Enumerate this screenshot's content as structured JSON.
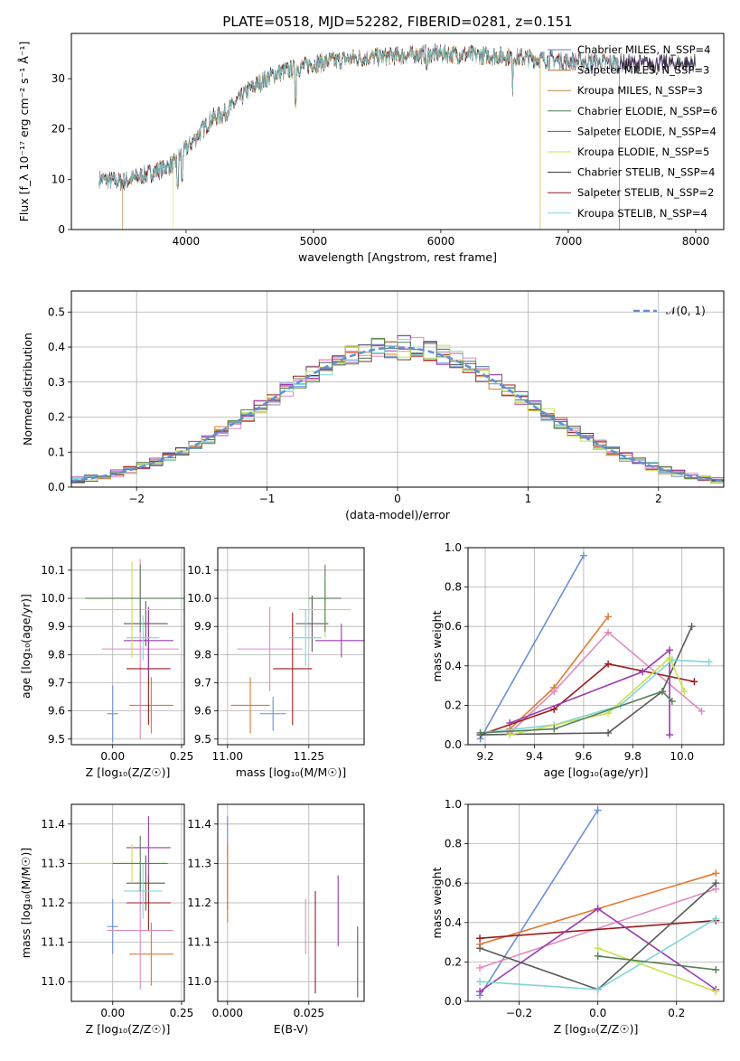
{
  "figure": {
    "title": "PLATE=0518, MJD=52282, FIBERID=0281, z=0.151"
  },
  "colors": {
    "series": [
      "#5f7fbf",
      "#c96d2e",
      "#b08a3a",
      "#4a7f4a",
      "#8a3aa8",
      "#d8d84a",
      "#2a2a2a",
      "#9b1c1c",
      "#7fd6d6"
    ],
    "fit": [
      "#6b8fd6",
      "#e07a2e",
      "#e08ac0",
      "#9b1c1c",
      "#9b3ab0",
      "#5a5a5a",
      "#7fd6d6",
      "#c8e050",
      "#5a7f5a"
    ]
  },
  "chart_data": [
    {
      "id": "spectrum",
      "type": "line",
      "xlabel": "wavelength [Angstrom, rest frame]",
      "ylabel": "Flux [f_λ 10⁻¹⁷ erg cm⁻² s⁻¹ Å⁻¹]",
      "xlim": [
        3100,
        8220
      ],
      "ylim": [
        0,
        39
      ],
      "xticks": [
        4000,
        5000,
        6000,
        7000,
        8000
      ],
      "yticks": [
        0,
        10,
        20,
        30
      ],
      "legend_position": "top-right",
      "continuum": {
        "x": [
          3320,
          3500,
          3700,
          3800,
          3900,
          4000,
          4100,
          4200,
          4300,
          4500,
          4700,
          5000,
          5300,
          5600,
          6000,
          6500,
          7000,
          7500,
          8000
        ],
        "y": [
          10,
          9.5,
          11,
          12,
          13,
          16,
          19,
          22,
          23,
          28,
          31,
          33,
          34,
          34.5,
          35,
          34.5,
          33.5,
          33,
          33
        ]
      },
      "series": [
        {
          "name": "Chabrier MILES, N_SSP=4"
        },
        {
          "name": "Salpeter MILES, N_SSP=3"
        },
        {
          "name": "Kroupa MILES, N_SSP=3"
        },
        {
          "name": "Chabrier ELODIE, N_SSP=6"
        },
        {
          "name": "Salpeter ELODIE, N_SSP=4"
        },
        {
          "name": "Kroupa ELODIE, N_SSP=5"
        },
        {
          "name": "Chabrier STELIB, N_SSP=4"
        },
        {
          "name": "Salpeter STELIB, N_SSP=2"
        },
        {
          "name": "Kroupa STELIB, N_SSP=4"
        }
      ]
    },
    {
      "id": "residual",
      "type": "line",
      "xlabel": "(data-model)/error",
      "ylabel": "Normed distribution",
      "xlim": [
        -2.5,
        2.5
      ],
      "ylim": [
        0,
        0.56
      ],
      "xticks": [
        -2,
        -1,
        0,
        1,
        2
      ],
      "xticklabels": [
        "−2",
        "−1",
        "0",
        "1",
        "2"
      ],
      "yticks": [
        0.0,
        0.1,
        0.2,
        0.3,
        0.4,
        0.5
      ],
      "yticklabels": [
        "0.0",
        "0.1",
        "0.2",
        "0.3",
        "0.4",
        "0.5"
      ],
      "legend": "𝒩(0, 1)",
      "legend_position": "top-right"
    },
    {
      "id": "z-age",
      "type": "scatter",
      "xlabel": "Z [log₁₀(Z/Z☉)]",
      "ylabel": "age  [log₁₀(age/yr)]",
      "xlim": [
        -0.15,
        0.26
      ],
      "ylim": [
        9.48,
        10.18
      ],
      "xticks": [
        0.0,
        0.25
      ],
      "xticklabels": [
        "0.00",
        "0.25"
      ],
      "yticks": [
        9.5,
        9.6,
        9.7,
        9.8,
        9.9,
        10.0,
        10.1
      ],
      "yticklabels": [
        "9.5",
        "9.6",
        "9.7",
        "9.8",
        "9.9",
        "10.0",
        "10.1"
      ],
      "points": [
        {
          "x": 0.0,
          "y": 9.59,
          "xerr": 0.02,
          "yerr": 0.1
        },
        {
          "x": 0.14,
          "y": 9.62,
          "xerr": 0.08,
          "yerr": 0.1
        },
        {
          "x": 0.1,
          "y": 9.82,
          "xerr": 0.14,
          "yerr": 0.32
        },
        {
          "x": 0.13,
          "y": 9.75,
          "xerr": 0.08,
          "yerr": 0.2
        },
        {
          "x": 0.13,
          "y": 9.85,
          "xerr": 0.09,
          "yerr": 0.12
        },
        {
          "x": 0.12,
          "y": 9.91,
          "xerr": 0.08,
          "yerr": 0.08
        },
        {
          "x": 0.11,
          "y": 9.86,
          "xerr": 0.06,
          "yerr": 0.08
        },
        {
          "x": 0.07,
          "y": 9.96,
          "xerr": 0.19,
          "yerr": 0.17
        },
        {
          "x": 0.1,
          "y": 10.0,
          "xerr": 0.2,
          "yerr": 0.12
        }
      ]
    },
    {
      "id": "mass-age",
      "type": "scatter",
      "xlabel": "mass [log₁₀(M/M☉)]",
      "ylabel": "",
      "xlim": [
        10.97,
        11.42
      ],
      "ylim": [
        9.48,
        10.18
      ],
      "xticks": [
        11.0,
        11.25
      ],
      "xticklabels": [
        "11.00",
        "11.25"
      ],
      "yticks": [
        9.5,
        9.6,
        9.7,
        9.8,
        9.9,
        10.0,
        10.1
      ],
      "yticklabels": [
        "9.5",
        "9.6",
        "9.7",
        "9.8",
        "9.9",
        "10.0",
        "10.1"
      ],
      "points": [
        {
          "x": 11.14,
          "y": 9.59,
          "xerr": 0.04,
          "yerr": 0.06
        },
        {
          "x": 11.07,
          "y": 9.62,
          "xerr": 0.06,
          "yerr": 0.1
        },
        {
          "x": 11.13,
          "y": 9.82,
          "xerr": 0.1,
          "yerr": 0.15
        },
        {
          "x": 11.2,
          "y": 9.75,
          "xerr": 0.06,
          "yerr": 0.2
        },
        {
          "x": 11.35,
          "y": 9.85,
          "xerr": 0.08,
          "yerr": 0.06
        },
        {
          "x": 11.26,
          "y": 9.91,
          "xerr": 0.05,
          "yerr": 0.1
        },
        {
          "x": 11.24,
          "y": 9.86,
          "xerr": 0.05,
          "yerr": 0.1
        },
        {
          "x": 11.3,
          "y": 9.96,
          "xerr": 0.08,
          "yerr": 0.1
        },
        {
          "x": 11.3,
          "y": 10.0,
          "xerr": 0.05,
          "yerr": 0.12
        }
      ]
    },
    {
      "id": "age-weight",
      "type": "line",
      "xlabel": "age  [log₁₀(age/yr)]",
      "ylabel": "mass weight",
      "xlim": [
        9.13,
        10.17
      ],
      "ylim": [
        0,
        1.0
      ],
      "xticks": [
        9.2,
        9.4,
        9.6,
        9.8,
        10.0
      ],
      "xticklabels": [
        "9.2",
        "9.4",
        "9.6",
        "9.8",
        "10.0"
      ],
      "yticks": [
        0.0,
        0.2,
        0.4,
        0.6,
        0.8,
        1.0
      ],
      "yticklabels": [
        "0.0",
        "0.2",
        "0.4",
        "0.6",
        "0.8",
        "1.0"
      ],
      "series": [
        {
          "x": [
            9.18,
            9.6
          ],
          "y": [
            0.03,
            0.96
          ]
        },
        {
          "x": [
            9.3,
            9.48,
            9.7
          ],
          "y": [
            0.08,
            0.29,
            0.65
          ]
        },
        {
          "x": [
            9.3,
            9.48,
            9.7,
            10.08
          ],
          "y": [
            0.06,
            0.27,
            0.57,
            0.17
          ]
        },
        {
          "x": [
            9.18,
            9.48,
            9.7,
            10.05
          ],
          "y": [
            0.05,
            0.18,
            0.41,
            0.32
          ]
        },
        {
          "x": [
            9.3,
            9.84,
            9.95,
            9.95
          ],
          "y": [
            0.11,
            0.37,
            0.48,
            0.05
          ]
        },
        {
          "x": [
            9.18,
            9.7,
            9.92,
            10.04
          ],
          "y": [
            0.05,
            0.06,
            0.27,
            0.6
          ]
        },
        {
          "x": [
            9.18,
            9.48,
            9.75,
            9.96,
            10.11
          ],
          "y": [
            0.06,
            0.1,
            0.2,
            0.43,
            0.42
          ]
        },
        {
          "x": [
            9.3,
            9.7,
            9.95,
            10.01
          ],
          "y": [
            0.05,
            0.16,
            0.44,
            0.27
          ]
        },
        {
          "x": [
            9.18,
            9.48,
            9.92,
            9.96
          ],
          "y": [
            0.06,
            0.08,
            0.27,
            0.22
          ]
        }
      ]
    },
    {
      "id": "z-mass",
      "type": "scatter",
      "xlabel": "Z [log₁₀(Z/Z☉)]",
      "ylabel": "mass [log₁₀(M/M☉)]",
      "xlim": [
        -0.15,
        0.26
      ],
      "ylim": [
        10.95,
        11.45
      ],
      "xticks": [
        0.0,
        0.25
      ],
      "xticklabels": [
        "0.00",
        "0.25"
      ],
      "yticks": [
        11.0,
        11.1,
        11.2,
        11.3,
        11.4
      ],
      "yticklabels": [
        "11.0",
        "11.1",
        "11.2",
        "11.3",
        "11.4"
      ],
      "points": [
        {
          "x": 0.0,
          "y": 11.14,
          "xerr": 0.02,
          "yerr": 0.07
        },
        {
          "x": 0.14,
          "y": 11.07,
          "xerr": 0.08,
          "yerr": 0.08
        },
        {
          "x": 0.1,
          "y": 11.13,
          "xerr": 0.12,
          "yerr": 0.15
        },
        {
          "x": 0.13,
          "y": 11.2,
          "xerr": 0.08,
          "yerr": 0.07
        },
        {
          "x": 0.13,
          "y": 11.34,
          "xerr": 0.08,
          "yerr": 0.08
        },
        {
          "x": 0.12,
          "y": 11.25,
          "xerr": 0.07,
          "yerr": 0.07
        },
        {
          "x": 0.11,
          "y": 11.23,
          "xerr": 0.07,
          "yerr": 0.07
        },
        {
          "x": 0.07,
          "y": 11.3,
          "xerr": 0.19,
          "yerr": 0.05
        },
        {
          "x": 0.1,
          "y": 11.3,
          "xerr": 0.1,
          "yerr": 0.07
        }
      ]
    },
    {
      "id": "ebv-mass",
      "type": "scatter",
      "xlabel": "E(B-V)",
      "ylabel": "",
      "xlim": [
        -0.003,
        0.042
      ],
      "ylim": [
        10.95,
        11.45
      ],
      "xticks": [
        0.0,
        0.025
      ],
      "xticklabels": [
        "0.000",
        "0.025"
      ],
      "yticks": [
        11.0,
        11.1,
        11.2,
        11.3,
        11.4
      ],
      "yticklabels": [
        "11.0",
        "11.1",
        "11.2",
        "11.3",
        "11.4"
      ],
      "points": [
        {
          "x": 0.0,
          "y": 11.3,
          "xerr": 0,
          "yerr": 0.12
        },
        {
          "x": 0.0,
          "y": 11.25,
          "xerr": 0,
          "yerr": 0.1
        },
        {
          "x": 0.024,
          "y": 11.14,
          "xerr": 0,
          "yerr": 0.07
        },
        {
          "x": 0.027,
          "y": 11.1,
          "xerr": 0,
          "yerr": 0.13
        },
        {
          "x": 0.034,
          "y": 11.18,
          "xerr": 0,
          "yerr": 0.09
        },
        {
          "x": 0.04,
          "y": 11.05,
          "xerr": 0,
          "yerr": 0.09
        }
      ]
    },
    {
      "id": "z-weight",
      "type": "line",
      "xlabel": "Z [log₁₀(Z/Z☉)]",
      "ylabel": "mass weight",
      "xlim": [
        -0.33,
        0.32
      ],
      "ylim": [
        0,
        1.0
      ],
      "xticks": [
        -0.2,
        0.0,
        0.2
      ],
      "xticklabels": [
        "−0.2",
        "0.0",
        "0.2"
      ],
      "yticks": [
        0.0,
        0.2,
        0.4,
        0.6,
        0.8,
        1.0
      ],
      "yticklabels": [
        "0.0",
        "0.2",
        "0.4",
        "0.6",
        "0.8",
        "1.0"
      ],
      "series": [
        {
          "x": [
            -0.3,
            0.0
          ],
          "y": [
            0.03,
            0.97
          ]
        },
        {
          "x": [
            -0.3,
            0.0,
            0.3
          ],
          "y": [
            0.29,
            0.47,
            0.65
          ]
        },
        {
          "x": [
            -0.3,
            0.3
          ],
          "y": [
            0.17,
            0.57
          ]
        },
        {
          "x": [
            -0.3,
            0.3
          ],
          "y": [
            0.32,
            0.41
          ]
        },
        {
          "x": [
            -0.3,
            0.0,
            0.3
          ],
          "y": [
            0.05,
            0.47,
            0.06
          ]
        },
        {
          "x": [
            -0.3,
            0.0,
            0.3
          ],
          "y": [
            0.27,
            0.06,
            0.6
          ]
        },
        {
          "x": [
            -0.3,
            0.0,
            0.3
          ],
          "y": [
            0.1,
            0.06,
            0.42
          ]
        },
        {
          "x": [
            0.0,
            0.3
          ],
          "y": [
            0.27,
            0.05
          ]
        },
        {
          "x": [
            0.0,
            0.3
          ],
          "y": [
            0.23,
            0.16
          ]
        }
      ]
    }
  ]
}
